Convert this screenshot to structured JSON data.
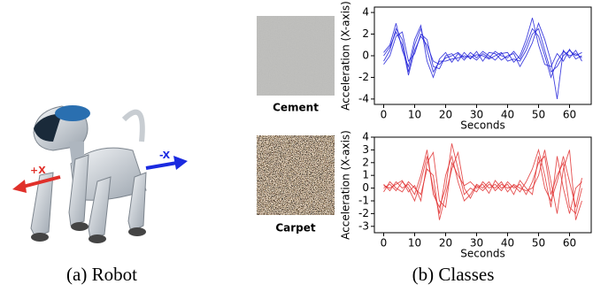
{
  "robot": {
    "caption": "(a) Robot",
    "plus_label": "+X",
    "minus_label": "-X"
  },
  "classes": {
    "caption": "(b) Classes"
  },
  "chart_data": [
    {
      "type": "line",
      "label": "Cement",
      "xlabel": "Seconds",
      "ylabel": "Acceleration (X-axis)",
      "x": [
        0,
        2,
        4,
        6,
        8,
        10,
        12,
        14,
        16,
        18,
        20,
        22,
        24,
        26,
        28,
        30,
        32,
        34,
        36,
        38,
        40,
        42,
        44,
        46,
        48,
        50,
        52,
        54,
        56,
        58,
        60,
        62,
        64
      ],
      "series": [
        {
          "color": "#1f1fd8",
          "values": [
            -0.5,
            0.5,
            2.5,
            1.5,
            -1.5,
            1.0,
            2.5,
            0.5,
            -1.5,
            -0.5,
            -0.5,
            -0.3,
            -0.2,
            0,
            -0.2,
            0.1,
            0,
            -0.3,
            0,
            0.3,
            -0.5,
            -0.3,
            -0.5,
            0.5,
            2.0,
            2.5,
            0.5,
            -1.5,
            -1.0,
            0,
            0.5,
            0,
            0.3
          ]
        },
        {
          "color": "#1f1fd8",
          "values": [
            0.3,
            1.0,
            3.0,
            0.5,
            -1.0,
            1.5,
            2.8,
            -0.5,
            -2.0,
            -0.3,
            0.3,
            -0.6,
            0.2,
            -0.4,
            0.3,
            -0.2,
            0.4,
            0,
            -0.4,
            0.2,
            0.3,
            -0.6,
            0,
            1.5,
            3.5,
            1.0,
            -0.8,
            -1.0,
            0.2,
            -0.5,
            0.6,
            -0.3,
            0
          ]
        },
        {
          "color": "#1f1fd8",
          "values": [
            -0.8,
            0,
            1.8,
            2.2,
            -0.5,
            0.2,
            2.0,
            1.5,
            -1.0,
            -1.2,
            0,
            0.2,
            -0.5,
            0.3,
            -0.3,
            0.4,
            -0.5,
            0.3,
            0.2,
            -0.4,
            0,
            0.2,
            -1.0,
            0,
            1.2,
            3.0,
            1.5,
            -0.5,
            -4.0,
            0.5,
            -0.2,
            0.5,
            -0.5
          ]
        },
        {
          "color": "#1f1fd8",
          "values": [
            0,
            0.8,
            2.2,
            1.0,
            -1.8,
            0.5,
            1.8,
            1.0,
            -0.5,
            -0.8,
            -0.2,
            0,
            0.3,
            -0.2,
            0,
            -0.4,
            0.2,
            -0.2,
            0.4,
            0,
            -0.2,
            0.4,
            -0.3,
            1.0,
            2.5,
            1.8,
            0,
            -2.0,
            -0.5,
            0.4,
            0,
            0.2,
            -0.2
          ]
        }
      ],
      "xlim": [
        -3,
        67
      ],
      "xticks": [
        0,
        10,
        20,
        30,
        40,
        50,
        60
      ],
      "ylim": [
        -4.5,
        4.5
      ],
      "yticks": [
        -4,
        -2,
        0,
        2,
        4
      ]
    },
    {
      "type": "line",
      "label": "Carpet",
      "xlabel": "Seconds",
      "ylabel": "Acceleration (X-axis)",
      "x": [
        0,
        2,
        4,
        6,
        8,
        10,
        12,
        14,
        16,
        18,
        20,
        22,
        24,
        26,
        28,
        30,
        32,
        34,
        36,
        38,
        40,
        42,
        44,
        46,
        48,
        50,
        52,
        54,
        56,
        58,
        60,
        62,
        64
      ],
      "series": [
        {
          "color": "#e03030",
          "values": [
            0,
            0.3,
            -0.2,
            0.5,
            0,
            -1.0,
            0.5,
            2.5,
            0,
            -2.0,
            1.0,
            2.5,
            0.5,
            -1.0,
            -0.5,
            0.3,
            0,
            0.5,
            -0.2,
            0.3,
            0,
            0.2,
            -0.3,
            0.5,
            1.5,
            3.0,
            1.0,
            -1.5,
            2.5,
            0,
            -2.0,
            0,
            0.5
          ]
        },
        {
          "color": "#e03030",
          "values": [
            0.3,
            -0.2,
            0.5,
            0,
            0.3,
            -0.5,
            1.0,
            3.0,
            -0.5,
            -1.5,
            0,
            3.5,
            1.5,
            -0.5,
            0,
            -0.3,
            0.5,
            0,
            0.3,
            -0.2,
            0.5,
            0,
            0.3,
            -0.5,
            0.5,
            2.0,
            2.5,
            -0.5,
            1.0,
            2.0,
            -1.5,
            -2.0,
            0
          ]
        },
        {
          "color": "#e03030",
          "values": [
            -0.3,
            0.5,
            0,
            -0.3,
            0.5,
            0,
            -0.5,
            1.5,
            1.0,
            -2.5,
            -0.5,
            1.5,
            2.8,
            0,
            -0.8,
            0.2,
            -0.2,
            0.3,
            0,
            0.5,
            -0.3,
            0.3,
            0,
            -0.2,
            0,
            1.0,
            3.0,
            0.5,
            -2.0,
            1.5,
            3.0,
            -2.5,
            -1.0
          ]
        },
        {
          "color": "#e03030",
          "values": [
            0.2,
            0,
            0.3,
            0.6,
            -0.3,
            0.2,
            -1.0,
            2.0,
            2.8,
            -1.0,
            -1.5,
            2.0,
            1.0,
            0.2,
            0.5,
            0,
            0.3,
            -0.4,
            0.6,
            0,
            0.3,
            -0.5,
            0.6,
            0,
            -0.5,
            2.5,
            0,
            -1.0,
            0.5,
            2.5,
            0.5,
            -1.5,
            0.8
          ]
        }
      ],
      "xlim": [
        -3,
        67
      ],
      "xticks": [
        0,
        10,
        20,
        30,
        40,
        50,
        60
      ],
      "ylim": [
        -3.5,
        4
      ],
      "yticks": [
        -3,
        -2,
        -1,
        0,
        1,
        2,
        3,
        4
      ]
    }
  ]
}
